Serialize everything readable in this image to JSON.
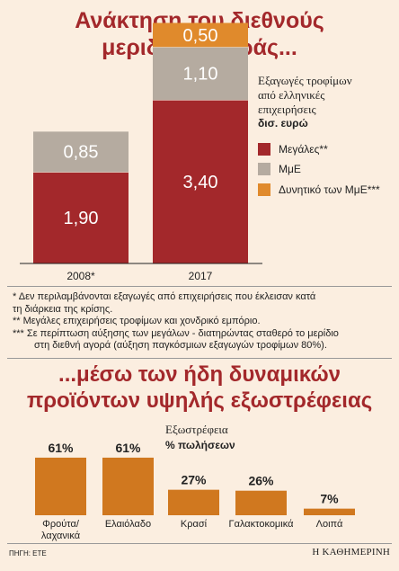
{
  "heading_top": {
    "line1": "Ανάκτηση του διεθνούς",
    "line2": "μεριδίου αγοράς..."
  },
  "legend": {
    "head_lines": [
      "Εξαγωγές τροφίμων",
      "από ελληνικές",
      "επιχειρήσεις"
    ],
    "unit": "δισ. ευρώ",
    "items": [
      {
        "label": "Μεγάλες**",
        "color": "#a3282b"
      },
      {
        "label": "ΜμΕ",
        "color": "#b5aba0"
      },
      {
        "label": "Δυνητικό των ΜμΕ***",
        "color": "#e08a2c"
      }
    ]
  },
  "notes": [
    "* Δεν περιλαμβάνονται εξαγωγές από επιχειρήσεις που έκλεισαν κατά",
    "τη διάρκεια της κρίσης.",
    "** Μεγάλες επιχειρήσεις τροφίμων και χονδρικό εμπόριο.",
    "*** Σε περίπτωση αύξησης των μεγάλων - διατηρώντας σταθερό το μερίδιο",
    "στη διεθνή αγορά (αύξηση παγκόσμιων εξαγωγών τροφίμων 80%)."
  ],
  "heading_bottom": {
    "line1": "...μέσω των ήδη δυναμικών",
    "line2": "προϊόντων υψηλής εξωστρέφειας"
  },
  "bar_legend": {
    "title": "Εξωστρέφεια",
    "unit": "% πωλήσεων"
  },
  "source": "ΠΗΓΗ: ΕΤΕ",
  "brand": "Η ΚΑΘΗΜΕΡΙΝΗ",
  "chart_data": [
    {
      "type": "bar",
      "stacked": true,
      "categories": [
        "2008*",
        "2017"
      ],
      "series": [
        {
          "name": "Μεγάλες**",
          "values": [
            1.9,
            3.4
          ],
          "labels": [
            "1,90",
            "3,40"
          ],
          "color": "#a3282b"
        },
        {
          "name": "ΜμΕ",
          "values": [
            0.85,
            1.1
          ],
          "labels": [
            "0,85",
            "1,10"
          ],
          "color": "#b5aba0"
        },
        {
          "name": "Δυνητικό των ΜμΕ***",
          "values": [
            0,
            0.5
          ],
          "labels": [
            "",
            "0,50"
          ],
          "color": "#e08a2c"
        }
      ],
      "ylabel": "δισ. ευρώ"
    },
    {
      "type": "bar",
      "categories": [
        "Φρούτα/ λαχανικά",
        "Ελαιόλαδο",
        "Κρασί",
        "Γαλακτοκομικά",
        "Λοιπά"
      ],
      "values": [
        61,
        61,
        27,
        26,
        7
      ],
      "labels": [
        "61%",
        "61%",
        "27%",
        "26%",
        "7%"
      ],
      "ylabel": "% πωλήσεων",
      "color": "#d0781f"
    }
  ]
}
